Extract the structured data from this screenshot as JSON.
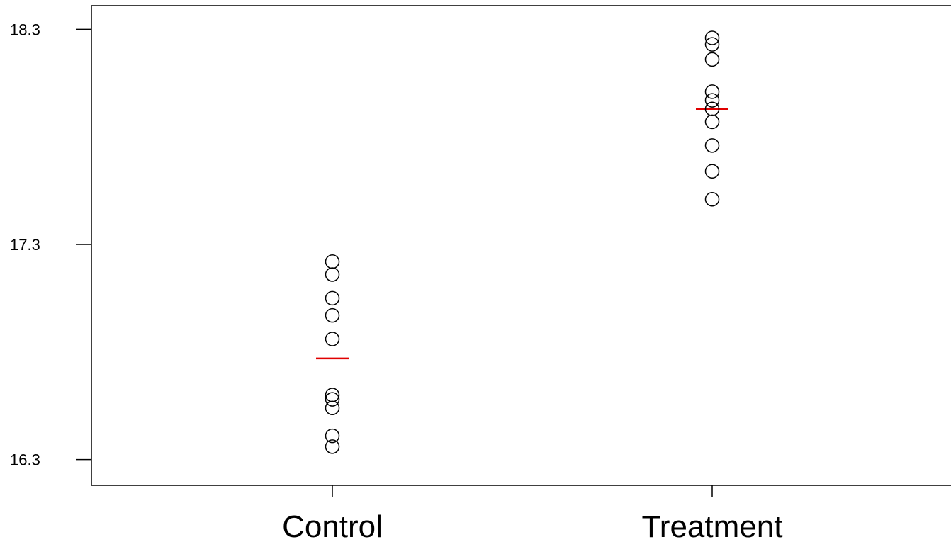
{
  "chart_data": {
    "type": "scatter",
    "title": "",
    "xlabel": "",
    "ylabel": "",
    "categories": [
      "Control",
      "Treatment"
    ],
    "ylim": [
      16.18,
      18.41
    ],
    "yticks": [
      16.3,
      17.3,
      18.3
    ],
    "ytick_labels": [
      "16.3",
      "17.3",
      "18.3"
    ],
    "series": [
      {
        "category": "Control",
        "values": [
          17.22,
          17.16,
          17.05,
          16.97,
          16.86,
          16.6,
          16.58,
          16.54,
          16.41,
          16.36
        ],
        "mean": 16.77
      },
      {
        "category": "Treatment",
        "values": [
          18.26,
          18.23,
          18.16,
          18.01,
          17.97,
          17.93,
          17.87,
          17.76,
          17.64,
          17.51
        ],
        "mean": 17.93
      }
    ],
    "point_color": "#000000",
    "mean_color": "#e00000",
    "grid": false,
    "legend": "none"
  }
}
